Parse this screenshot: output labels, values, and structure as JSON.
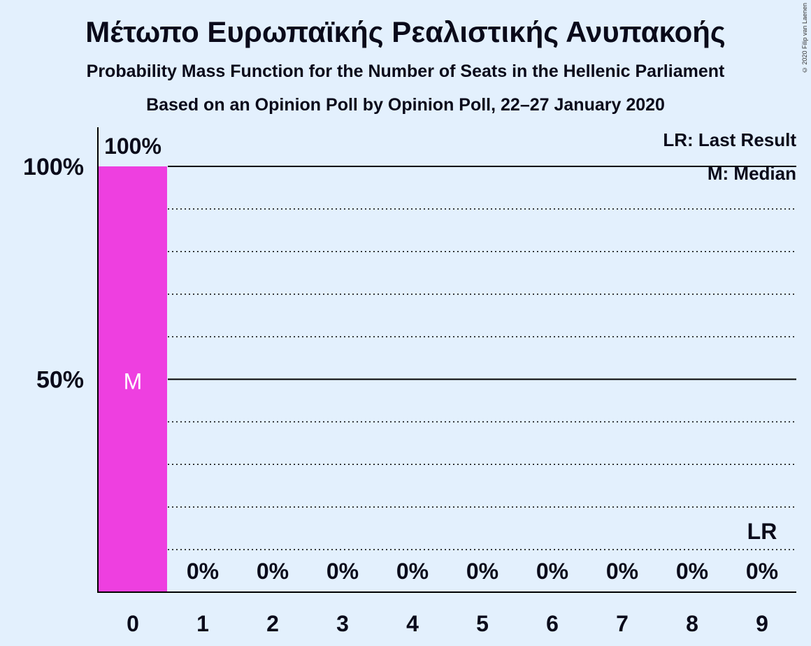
{
  "title": "Μέτωπο Ευρωπαϊκής Ρεαλιστικής Ανυπακοής",
  "subtitle": "Probability Mass Function for the Number of Seats in the Hellenic Parliament",
  "subtitle2": "Based on an Opinion Poll by Opinion Poll, 22–27 January 2020",
  "copyright": "© 2020 Filip van Laenen",
  "legend": {
    "last_result": "LR: Last Result",
    "median": "M: Median"
  },
  "chart_data": {
    "type": "bar",
    "categories": [
      "0",
      "1",
      "2",
      "3",
      "4",
      "5",
      "6",
      "7",
      "8",
      "9"
    ],
    "values": [
      100,
      0,
      0,
      0,
      0,
      0,
      0,
      0,
      0,
      0
    ],
    "value_labels": [
      "100%",
      "0%",
      "0%",
      "0%",
      "0%",
      "0%",
      "0%",
      "0%",
      "0%",
      "0%"
    ],
    "y_ticks": [
      {
        "value": 50,
        "label": "50%"
      },
      {
        "value": 100,
        "label": "100%"
      }
    ],
    "ylim": [
      0,
      110
    ],
    "grid": true,
    "median_category": "0",
    "median_marker": "M",
    "last_result_category": "9",
    "last_result_marker": "LR",
    "bar_color": "#ee3fe0",
    "axis_color": "#000000",
    "background": "#e3f0fd"
  }
}
